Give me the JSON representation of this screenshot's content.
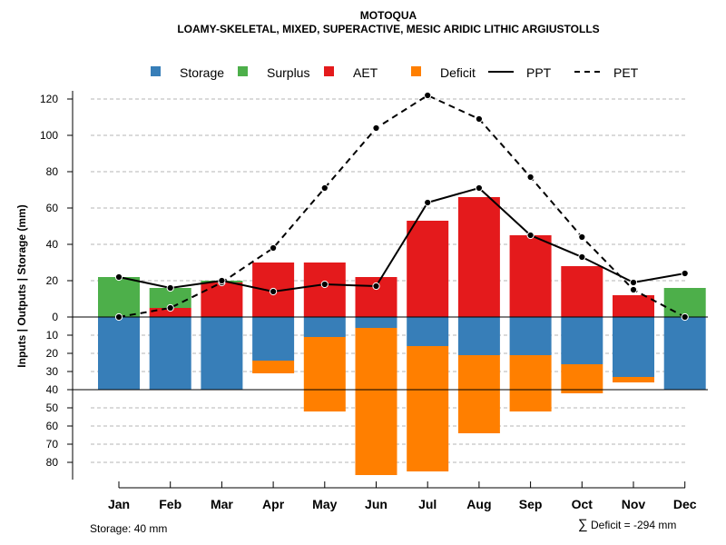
{
  "chart_data": {
    "type": "bar",
    "title": "MOTOQUA",
    "subtitle": "LOAMY-SKELETAL, MIXED, SUPERACTIVE, MESIC ARIDIC LITHIC ARGIUSTOLLS",
    "ylabel": "Inputs | Outputs | Storage    (mm)",
    "categories": [
      "Jan",
      "Feb",
      "Mar",
      "Apr",
      "May",
      "Jun",
      "Jul",
      "Aug",
      "Sep",
      "Oct",
      "Nov",
      "Dec"
    ],
    "ylim": [
      -88,
      125
    ],
    "upper_ticks": [
      "0",
      "20",
      "40",
      "60",
      "80",
      "100",
      "120"
    ],
    "upper_tick_values": [
      0,
      20,
      40,
      60,
      80,
      100,
      120
    ],
    "lower_ticks": [
      "10",
      "20",
      "30",
      "40",
      "50",
      "60",
      "70",
      "80"
    ],
    "lower_tick_values": [
      10,
      20,
      30,
      40,
      50,
      60,
      70,
      80
    ],
    "storage_capacity": 40,
    "series": [
      {
        "name": "Storage",
        "color": "#377EB8",
        "values": [
          40,
          40,
          40,
          24,
          11,
          6,
          16,
          21,
          21,
          26,
          33,
          40
        ]
      },
      {
        "name": "Surplus",
        "color": "#4DAF4A",
        "values": [
          22,
          11,
          1,
          0,
          0,
          0,
          0,
          0,
          0,
          0,
          0,
          16
        ]
      },
      {
        "name": "AET",
        "color": "#E41A1C",
        "values": [
          0,
          5,
          19,
          30,
          30,
          22,
          53,
          66,
          45,
          28,
          12,
          0
        ]
      },
      {
        "name": "Deficit",
        "color": "#FF7F00",
        "values": [
          0,
          0,
          0,
          7,
          41,
          81,
          69,
          43,
          31,
          16,
          3,
          0
        ]
      },
      {
        "name": "PPT",
        "color": "#000000",
        "style": "solid",
        "values": [
          22,
          16,
          20,
          14,
          18,
          17,
          63,
          71,
          45,
          33,
          19,
          24
        ]
      },
      {
        "name": "PET",
        "color": "#000000",
        "style": "dashed",
        "values": [
          0,
          5,
          19,
          38,
          71,
          104,
          122,
          109,
          77,
          44,
          15,
          0
        ]
      }
    ]
  },
  "legend": {
    "storage": "Storage",
    "surplus": "Surplus",
    "aet": "AET",
    "deficit": "Deficit",
    "ppt": "PPT",
    "pet": "PET"
  },
  "footer": {
    "storage_note": "Storage: 40 mm",
    "deficit_symbol": "∑",
    "deficit_total": "Deficit = -294 mm"
  }
}
